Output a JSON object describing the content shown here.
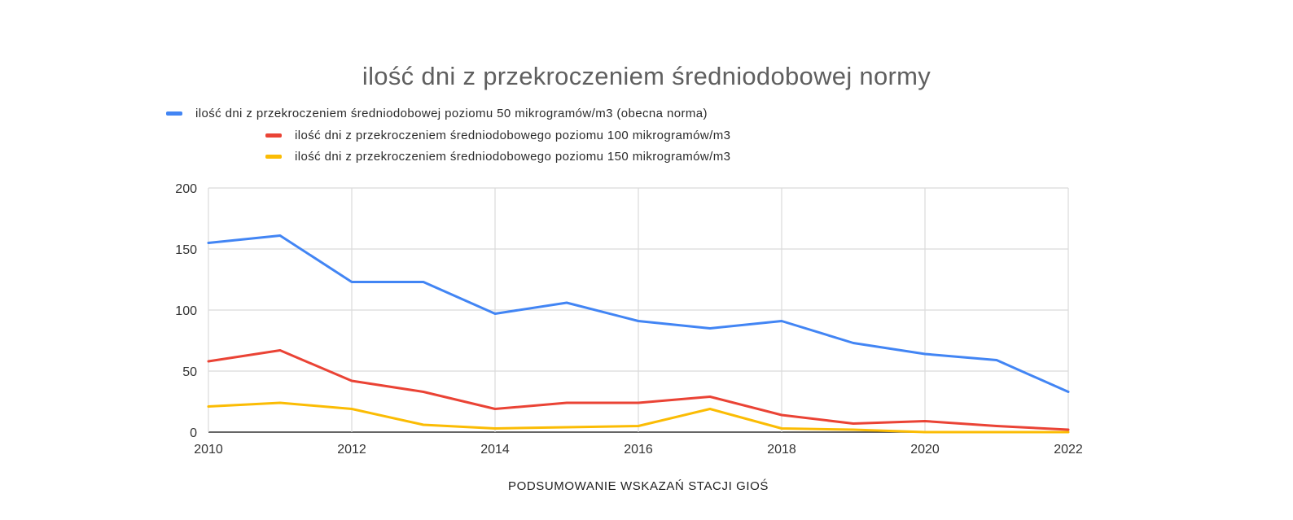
{
  "chart_data": {
    "type": "line",
    "title": "ilość dni z przekroczeniem średniodobowej normy",
    "xlabel": "PODSUMOWANIE WSKAZAŃ STACJI GIOŚ",
    "ylabel": "",
    "x": [
      2010,
      2011,
      2012,
      2013,
      2014,
      2015,
      2016,
      2017,
      2018,
      2019,
      2020,
      2021,
      2022
    ],
    "x_ticks": [
      "2010",
      "2012",
      "2014",
      "2016",
      "2018",
      "2020",
      "2022"
    ],
    "y_ticks": [
      "0",
      "50",
      "100",
      "150",
      "200"
    ],
    "xlim": [
      2010,
      2022
    ],
    "ylim": [
      0,
      200
    ],
    "grid": true,
    "legend_position": "top",
    "series": [
      {
        "name": "ilość dni z przekroczeniem średniodobowej poziomu 50 mikrogramów/m3 (obecna norma)",
        "color": "#4285f4",
        "values": [
          155,
          161,
          123,
          123,
          97,
          106,
          91,
          85,
          91,
          73,
          64,
          59,
          33
        ]
      },
      {
        "name": "ilość dni z przekroczeniem średniodobowego poziomu 100 mikrogramów/m3",
        "color": "#ea4335",
        "values": [
          58,
          67,
          42,
          33,
          19,
          24,
          24,
          29,
          14,
          7,
          9,
          5,
          2
        ]
      },
      {
        "name": "ilość dni z przekroczeniem średniodobowego poziomu 150 mikrogramów/m3",
        "color": "#fbbc04",
        "values": [
          21,
          24,
          19,
          6,
          3,
          4,
          5,
          19,
          3,
          2,
          0,
          0,
          0
        ]
      }
    ]
  }
}
